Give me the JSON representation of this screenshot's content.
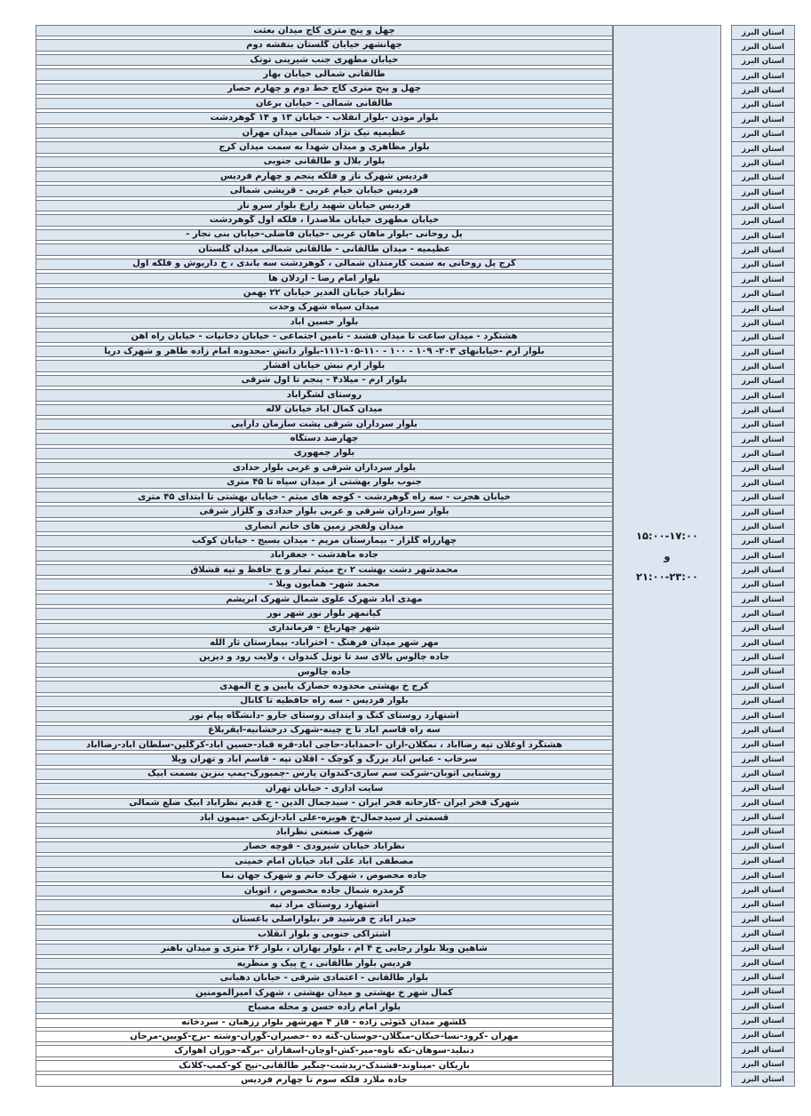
{
  "table": {
    "province_label": "استان البرز",
    "time_window": {
      "range1": "۱۵:۰۰-۱۷:۰۰",
      "conjunction": "و",
      "range2": "۲۱:۰۰-۲۳:۰۰"
    },
    "colors": {
      "row_fill": "#dce6f1",
      "white_row_fill": "#ffffff",
      "border": "#767b84",
      "text": "#16181c"
    },
    "white_group_start": 68,
    "rows": [
      "چهل و پنج متری کاج  میدان بعثت",
      "جهانشهر خیابان گلستان بنفشه دوم",
      "خیابان مطهری  جنب شیرینی توتک",
      "طالقانی شمالی خیابان بهار",
      "چهل و پنج متری کاج خط دوم و چهارم حصار",
      "طالقانی شمالی - خیابان برغان",
      "بلوار موذن -بلوار انقلاب - خیابان ۱۳ و ۱۴ گوهردشت",
      "عظیمیه  نیک نژاد شمالی میدان مهران",
      "بلوار مظاهری و میدان شهدا به سمت میدان کرج",
      "بلوار بلال و طالقانی جنوبی",
      "فردیس شهرک ناز و فلکه پنجم و چهارم فردیس",
      "فردیس خیابان خیام غربی - قریشی شمالی",
      "فردیس خیابان شهید زارع  بلوار سرو ناز",
      "خیابان مطهری خیابان ملاصدرا ، فلکه اول گوهردشت",
      "پل روحانی -بلوار ماهان غربی -خیابان فاضلی-خیابان بنی نجار -",
      "عظیمیه - میدان طالقانی - طالقانی شمالی میدان گلستان",
      "کرج پل روحانی به سمت  کارمندان شمالی ، گوهردشت سه باندی  ، خ داریوش و فلکه اول",
      "بلوار امام رضا - اردلان ها",
      "نظرآباد  خیابان الغدیر  خیابان ۲۲ بهمن",
      "میدان سپاه شهرک وحدت",
      "بلوار حسین آباد",
      "هشتگرد - میدان ساعت تا میدان فشند - تامین اجتماعی - خیابان دخانیات - خیابان راه آهن",
      "بلوار ارم -خیابانهای ۲۰۳- ۱۰۹ - ۱۰۰ - ۱۱۰-۱۰۵-۱۱۱-بلوار دانش -محدوده امام زاده طاهر و شهرک دریا",
      "بلوار ارم نبش خیابان افشار",
      "بلوار ارم - میلاد۴ - پنجم تا اول شرقی",
      "روستای لشگرآباد",
      "میدان کمال آباد خیابان لاله",
      "بلوار سرداران شرقی پشت سازمان دارایی",
      "چهارصد دستگاه",
      "بلوار جمهوری",
      "بلوار سرداران شرقی و غربی بلوار حدادی",
      "جنوب بلوار بهشتی از میدان سپاه تا ۴۵ متری",
      "خیابان هجرت - سه راه گوهردشت - کوچه های میثم - خیابان بهشتی تا ابتدای ۴۵ متری",
      "بلوار سرداران شرقی و غربی بلوار حدادی و گلزار شرقی",
      "میدان ولفجر زمین های خانم انصاری",
      "چهارراه گلزار - بیمارستان مریم - میدان بسیج - خیابان کوکب",
      "جاده ماهدشت - جعفرآباد",
      "محمدشهر دشت بهشت ۲ ،خ  میثم تمار و خ حافظ و تپه قشلاق",
      "محمد شهر-  همایون ویلا  -",
      "مهدی آباد شهرک علوی شمال شهرک ابریشم",
      "کیانمهر بلوار نور شهر نور",
      "شهر چهارباغ  - فرمانداری",
      "مهر شهر میدان فرهنگ  - اخترآباد- بیمارستان ثار الله",
      "جاده چالوس بالای سد تا  تونل کندوان ، ولایت رود و دیزین",
      "جاده چالوس",
      "کرج خ بهشتی  محدوده حصارک پایین و خ المهدی",
      "بلوار فردیس - سه راه حافظیه تا کانال",
      "اشتهارد روستای کنگ و ابتدای روستای جارو -دانشگاه پیام نور",
      "سه راه قاسم آباد تا خ چینه-شهرک درخشانیه-ایقربلاغ",
      "هشتگرد اوغلان تپه رضاآباد ، نمکلان-آران -احمدآباد-حاجی آباد-قره قباد-حسین آباد-کرگلین-سلطان آباد-رضاآباد",
      "سرخاب - عباس آباد بزرگ و کوچک - اقلان تپه - قاسم اباد و تهران ویلا",
      "روشنایی اتوبان-شرکت سم سازی-کندوان پارس -چمبورک-پمپ بنزین بسمت آبیک",
      "سایت اداری - خیابان تهران",
      "شهرک فخر ایران -کارخانه فخر ایران - سیدجمال الدین - ج قدیم نظرآباد ابیک ضلع شمالی",
      "قسمتی از سیدجمال-خ هویزه-علی آباد-ازبکی -میمون آباد",
      "شهرک صنعتی نظرآباد",
      "نظرآباد خیابان شیرودی - قوچه حصار",
      "مصطفی اباد علی آباد خیابان امام خمینی",
      "جاده مخصوص ، شهرک خاتم و شهرک جهان نما",
      "گرمدره شمال جاده مخصوص ، اتوبان",
      "اشتهارد روستای مراد تپه",
      "حیدر آباد  خ فرشید فر ،بلواراصلی باغستان",
      "اشتراکی جنوبی  و بلوار انقلاب",
      "شاهین ویلا  بلوار رجایی خ ۴ ام ، بلوار بهاران  ،  بلوار ۲۶ متری و میدان باهنر",
      "فردیس بلوار طالقانی ، خ پیک و منظریه",
      "بلوار طالقانی - اعتمادی شرقی - خیابان دهبانی",
      "کمال شهر  خ بهشتی و میدان بهشتی ، شهرک امیرالمومنین",
      "بلوار امام زاده حسن و محله مصباح",
      "گلشهر میدان کتوئی زاده - فاز ۴ مهرشهر بلوار رزهبان  - سردخانه",
      "مهران -کرود-نسا-خیکان-منگلان-جوستان-گته ده -حصیران-گوران-وشته -بزج-کویین-مرجان",
      "دنبلید-سوهان-تکه ناوه-میر-کش-اوچان-آسفاران -برگه-خوران اهوارک",
      "باریکان -میناوند-فشندک-زیدشت-چنگیز طالقانی-تیج کو-کمپ-کلانک",
      "جاده ملارد فلکه سوم تا چهارم فردیس"
    ]
  }
}
